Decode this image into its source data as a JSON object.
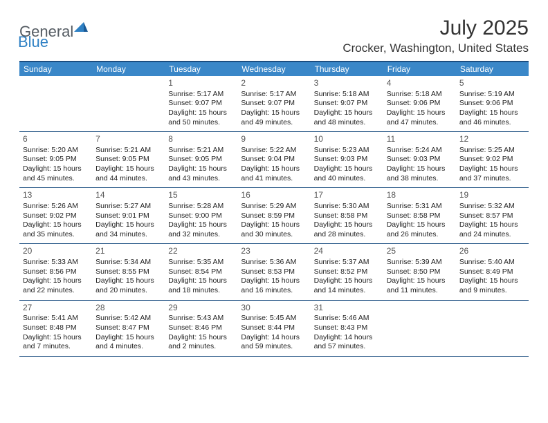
{
  "brand": {
    "general": "General",
    "blue": "Blue"
  },
  "title": "July 2025",
  "location": "Crocker, Washington, United States",
  "colors": {
    "header_bar": "#3a87c8",
    "border": "#1a4d80",
    "text": "#222222",
    "title_text": "#333333",
    "brand_gray": "#555c63",
    "brand_blue": "#2f81c4"
  },
  "days_of_week": [
    "Sunday",
    "Monday",
    "Tuesday",
    "Wednesday",
    "Thursday",
    "Friday",
    "Saturday"
  ],
  "weeks": [
    [
      null,
      null,
      {
        "n": "1",
        "sr": "Sunrise: 5:17 AM",
        "ss": "Sunset: 9:07 PM",
        "d1": "Daylight: 15 hours",
        "d2": "and 50 minutes."
      },
      {
        "n": "2",
        "sr": "Sunrise: 5:17 AM",
        "ss": "Sunset: 9:07 PM",
        "d1": "Daylight: 15 hours",
        "d2": "and 49 minutes."
      },
      {
        "n": "3",
        "sr": "Sunrise: 5:18 AM",
        "ss": "Sunset: 9:07 PM",
        "d1": "Daylight: 15 hours",
        "d2": "and 48 minutes."
      },
      {
        "n": "4",
        "sr": "Sunrise: 5:18 AM",
        "ss": "Sunset: 9:06 PM",
        "d1": "Daylight: 15 hours",
        "d2": "and 47 minutes."
      },
      {
        "n": "5",
        "sr": "Sunrise: 5:19 AM",
        "ss": "Sunset: 9:06 PM",
        "d1": "Daylight: 15 hours",
        "d2": "and 46 minutes."
      }
    ],
    [
      {
        "n": "6",
        "sr": "Sunrise: 5:20 AM",
        "ss": "Sunset: 9:05 PM",
        "d1": "Daylight: 15 hours",
        "d2": "and 45 minutes."
      },
      {
        "n": "7",
        "sr": "Sunrise: 5:21 AM",
        "ss": "Sunset: 9:05 PM",
        "d1": "Daylight: 15 hours",
        "d2": "and 44 minutes."
      },
      {
        "n": "8",
        "sr": "Sunrise: 5:21 AM",
        "ss": "Sunset: 9:05 PM",
        "d1": "Daylight: 15 hours",
        "d2": "and 43 minutes."
      },
      {
        "n": "9",
        "sr": "Sunrise: 5:22 AM",
        "ss": "Sunset: 9:04 PM",
        "d1": "Daylight: 15 hours",
        "d2": "and 41 minutes."
      },
      {
        "n": "10",
        "sr": "Sunrise: 5:23 AM",
        "ss": "Sunset: 9:03 PM",
        "d1": "Daylight: 15 hours",
        "d2": "and 40 minutes."
      },
      {
        "n": "11",
        "sr": "Sunrise: 5:24 AM",
        "ss": "Sunset: 9:03 PM",
        "d1": "Daylight: 15 hours",
        "d2": "and 38 minutes."
      },
      {
        "n": "12",
        "sr": "Sunrise: 5:25 AM",
        "ss": "Sunset: 9:02 PM",
        "d1": "Daylight: 15 hours",
        "d2": "and 37 minutes."
      }
    ],
    [
      {
        "n": "13",
        "sr": "Sunrise: 5:26 AM",
        "ss": "Sunset: 9:02 PM",
        "d1": "Daylight: 15 hours",
        "d2": "and 35 minutes."
      },
      {
        "n": "14",
        "sr": "Sunrise: 5:27 AM",
        "ss": "Sunset: 9:01 PM",
        "d1": "Daylight: 15 hours",
        "d2": "and 34 minutes."
      },
      {
        "n": "15",
        "sr": "Sunrise: 5:28 AM",
        "ss": "Sunset: 9:00 PM",
        "d1": "Daylight: 15 hours",
        "d2": "and 32 minutes."
      },
      {
        "n": "16",
        "sr": "Sunrise: 5:29 AM",
        "ss": "Sunset: 8:59 PM",
        "d1": "Daylight: 15 hours",
        "d2": "and 30 minutes."
      },
      {
        "n": "17",
        "sr": "Sunrise: 5:30 AM",
        "ss": "Sunset: 8:58 PM",
        "d1": "Daylight: 15 hours",
        "d2": "and 28 minutes."
      },
      {
        "n": "18",
        "sr": "Sunrise: 5:31 AM",
        "ss": "Sunset: 8:58 PM",
        "d1": "Daylight: 15 hours",
        "d2": "and 26 minutes."
      },
      {
        "n": "19",
        "sr": "Sunrise: 5:32 AM",
        "ss": "Sunset: 8:57 PM",
        "d1": "Daylight: 15 hours",
        "d2": "and 24 minutes."
      }
    ],
    [
      {
        "n": "20",
        "sr": "Sunrise: 5:33 AM",
        "ss": "Sunset: 8:56 PM",
        "d1": "Daylight: 15 hours",
        "d2": "and 22 minutes."
      },
      {
        "n": "21",
        "sr": "Sunrise: 5:34 AM",
        "ss": "Sunset: 8:55 PM",
        "d1": "Daylight: 15 hours",
        "d2": "and 20 minutes."
      },
      {
        "n": "22",
        "sr": "Sunrise: 5:35 AM",
        "ss": "Sunset: 8:54 PM",
        "d1": "Daylight: 15 hours",
        "d2": "and 18 minutes."
      },
      {
        "n": "23",
        "sr": "Sunrise: 5:36 AM",
        "ss": "Sunset: 8:53 PM",
        "d1": "Daylight: 15 hours",
        "d2": "and 16 minutes."
      },
      {
        "n": "24",
        "sr": "Sunrise: 5:37 AM",
        "ss": "Sunset: 8:52 PM",
        "d1": "Daylight: 15 hours",
        "d2": "and 14 minutes."
      },
      {
        "n": "25",
        "sr": "Sunrise: 5:39 AM",
        "ss": "Sunset: 8:50 PM",
        "d1": "Daylight: 15 hours",
        "d2": "and 11 minutes."
      },
      {
        "n": "26",
        "sr": "Sunrise: 5:40 AM",
        "ss": "Sunset: 8:49 PM",
        "d1": "Daylight: 15 hours",
        "d2": "and 9 minutes."
      }
    ],
    [
      {
        "n": "27",
        "sr": "Sunrise: 5:41 AM",
        "ss": "Sunset: 8:48 PM",
        "d1": "Daylight: 15 hours",
        "d2": "and 7 minutes."
      },
      {
        "n": "28",
        "sr": "Sunrise: 5:42 AM",
        "ss": "Sunset: 8:47 PM",
        "d1": "Daylight: 15 hours",
        "d2": "and 4 minutes."
      },
      {
        "n": "29",
        "sr": "Sunrise: 5:43 AM",
        "ss": "Sunset: 8:46 PM",
        "d1": "Daylight: 15 hours",
        "d2": "and 2 minutes."
      },
      {
        "n": "30",
        "sr": "Sunrise: 5:45 AM",
        "ss": "Sunset: 8:44 PM",
        "d1": "Daylight: 14 hours",
        "d2": "and 59 minutes."
      },
      {
        "n": "31",
        "sr": "Sunrise: 5:46 AM",
        "ss": "Sunset: 8:43 PM",
        "d1": "Daylight: 14 hours",
        "d2": "and 57 minutes."
      },
      null,
      null
    ]
  ]
}
